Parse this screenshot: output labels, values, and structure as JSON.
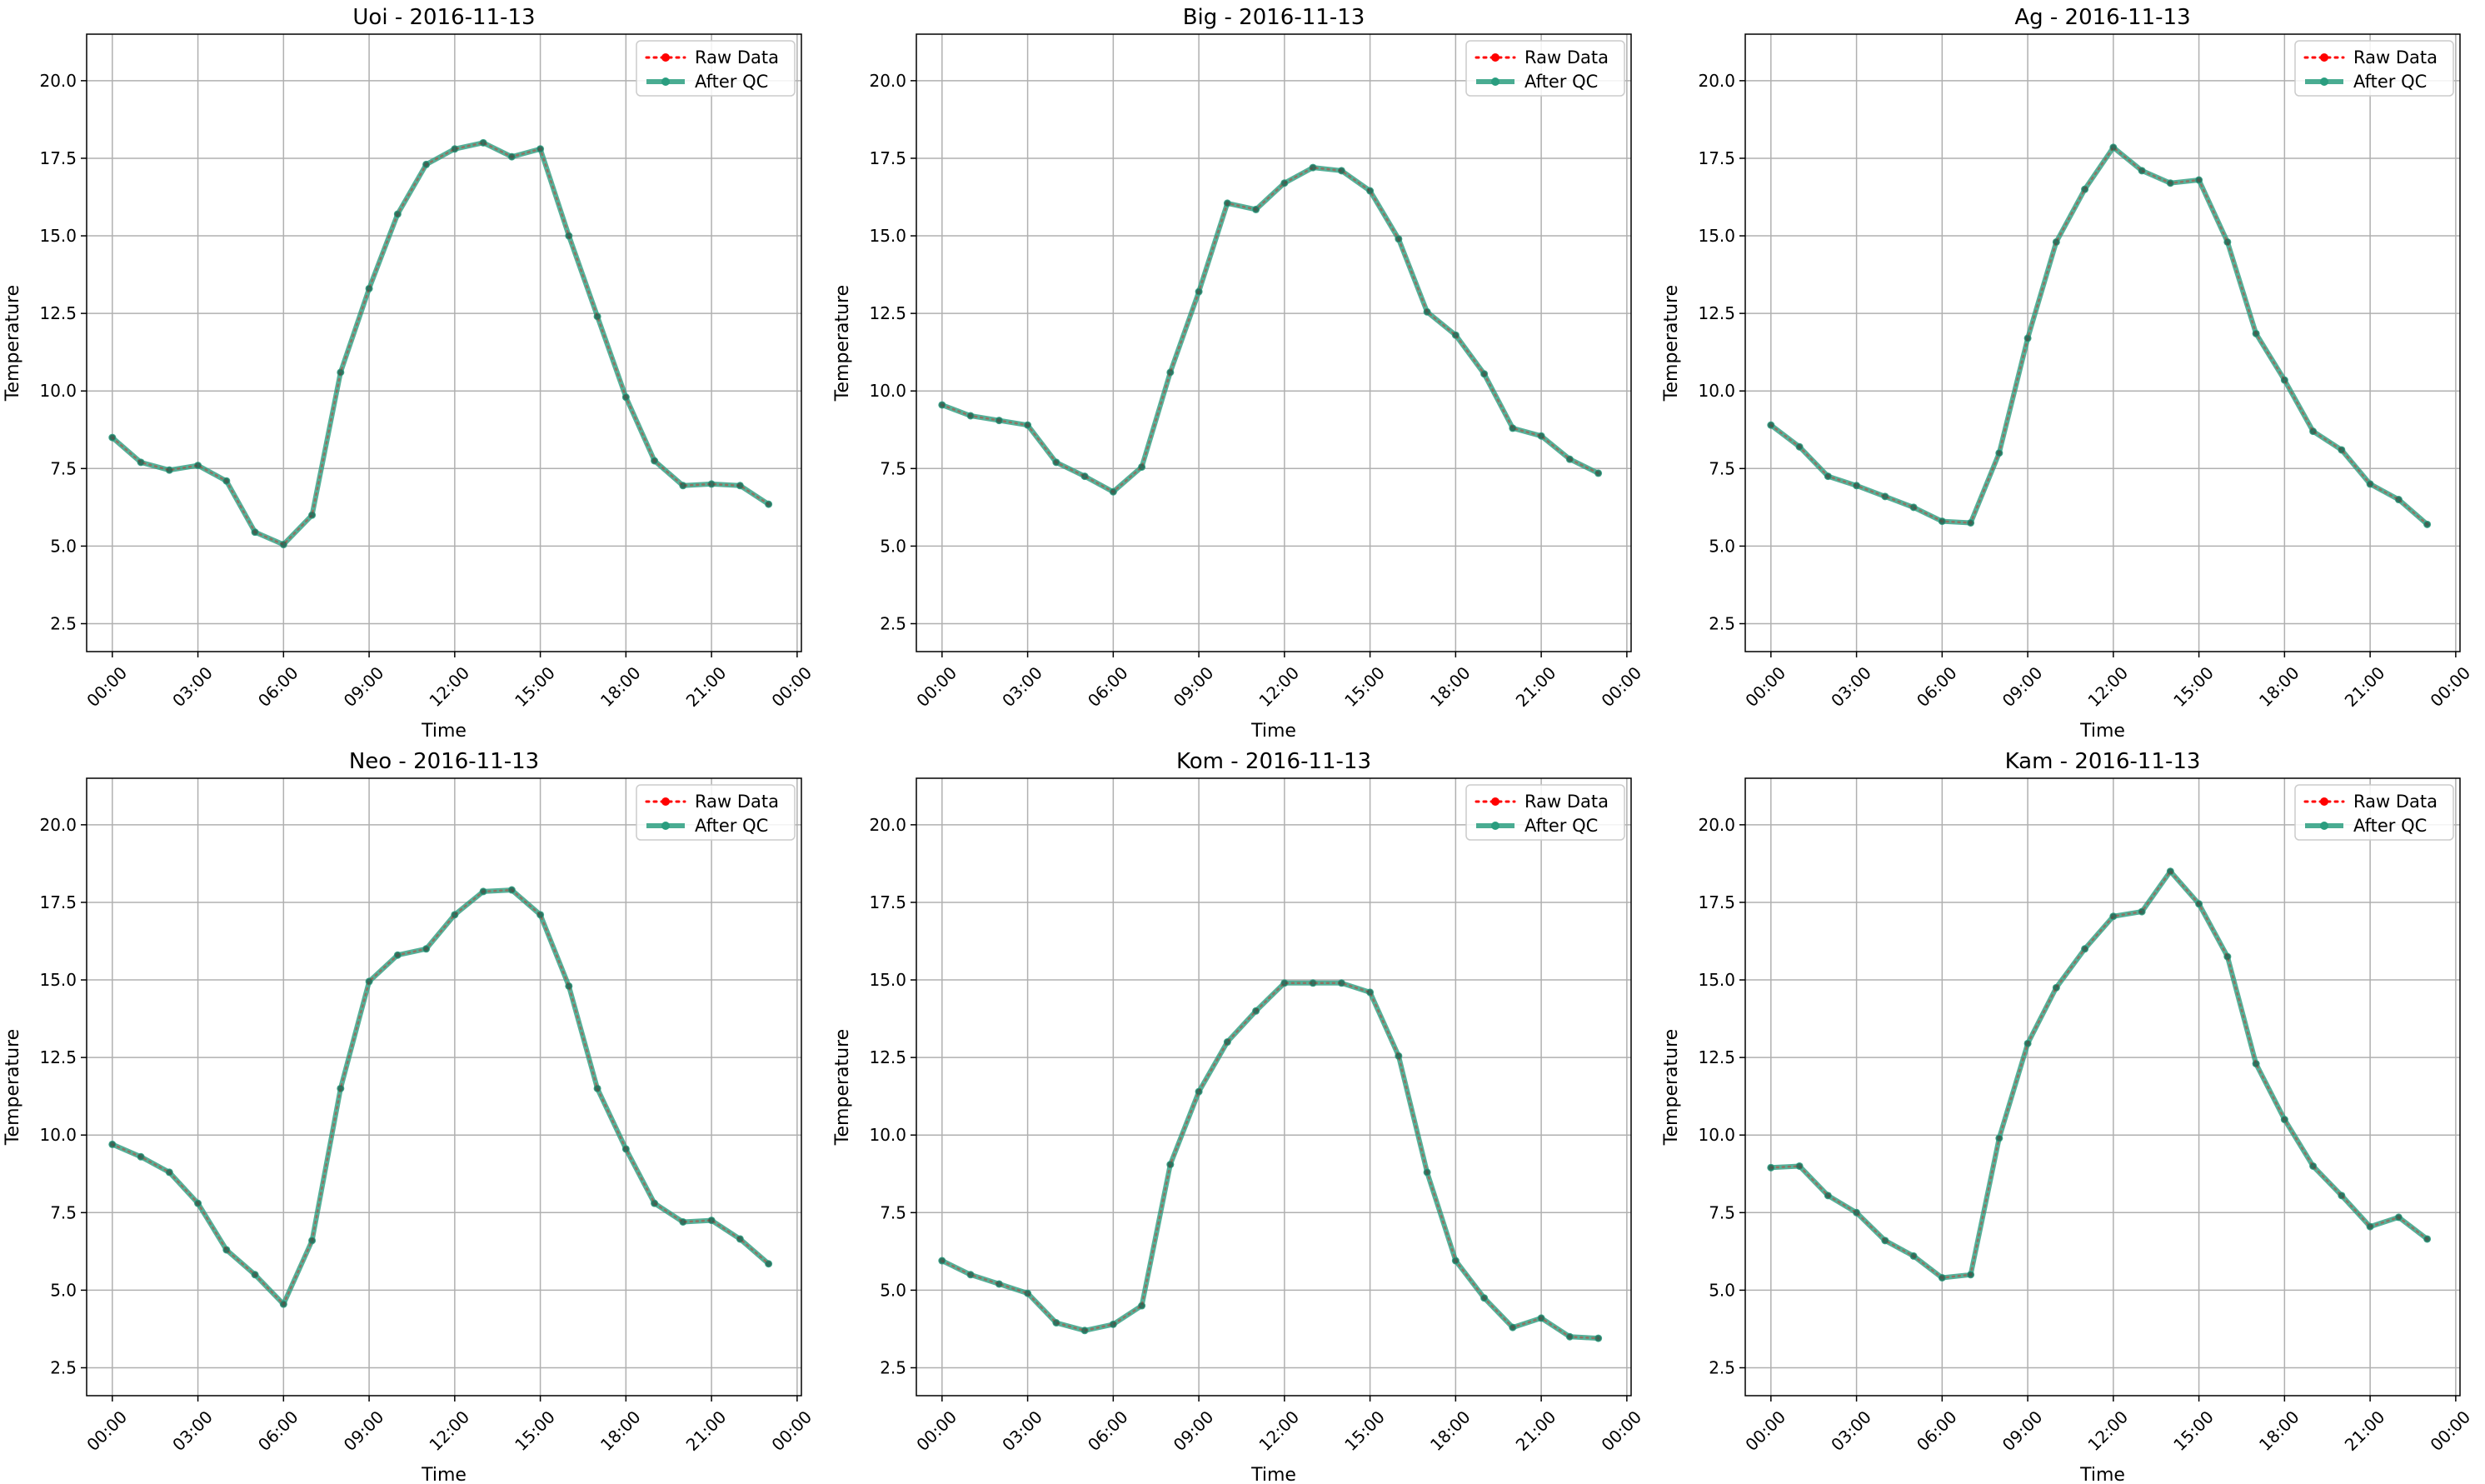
{
  "figure": {
    "xlabel": "Time",
    "ylabel": "Temperature",
    "ylim": [
      1.6,
      21.5
    ],
    "yticks": [
      "2.5",
      "5.0",
      "7.5",
      "10.0",
      "12.5",
      "15.0",
      "17.5",
      "20.0"
    ],
    "xtick_labels": [
      "00:00",
      "03:00",
      "06:00",
      "09:00",
      "12:00",
      "15:00",
      "18:00",
      "21:00",
      "00:00"
    ],
    "legend": {
      "position": "upper right",
      "raw_label": "Raw Data",
      "qc_label": "After QC"
    },
    "colors": {
      "raw": "#ff0000",
      "qc": "#2a9d7f",
      "grid": "#b0b0b0"
    }
  },
  "chart_data": [
    {
      "type": "line",
      "title": "Uoi - 2016-11-13",
      "xlabel": "Time",
      "ylabel": "Temperature",
      "x": [
        "00:00",
        "01:00",
        "02:00",
        "03:00",
        "04:00",
        "05:00",
        "06:00",
        "07:00",
        "08:00",
        "09:00",
        "10:00",
        "11:00",
        "12:00",
        "13:00",
        "14:00",
        "15:00",
        "16:00",
        "17:00",
        "18:00",
        "19:00",
        "20:00",
        "21:00",
        "22:00",
        "23:00"
      ],
      "series": [
        {
          "name": "Raw Data",
          "values": [
            8.5,
            7.7,
            7.45,
            7.6,
            7.1,
            5.45,
            5.05,
            6.0,
            10.6,
            13.3,
            15.7,
            17.3,
            17.8,
            18.0,
            17.55,
            17.8,
            15.0,
            12.4,
            9.8,
            7.75,
            6.95,
            7.0,
            6.95,
            6.35
          ]
        },
        {
          "name": "After QC",
          "values": [
            8.5,
            7.7,
            7.45,
            7.6,
            7.1,
            5.45,
            5.05,
            6.0,
            10.6,
            13.3,
            15.7,
            17.3,
            17.8,
            18.0,
            17.55,
            17.8,
            15.0,
            12.4,
            9.8,
            7.75,
            6.95,
            7.0,
            6.95,
            6.35
          ]
        }
      ]
    },
    {
      "type": "line",
      "title": "Big - 2016-11-13",
      "xlabel": "Time",
      "ylabel": "Temperature",
      "x": [
        "00:00",
        "01:00",
        "02:00",
        "03:00",
        "04:00",
        "05:00",
        "06:00",
        "07:00",
        "08:00",
        "09:00",
        "10:00",
        "11:00",
        "12:00",
        "13:00",
        "14:00",
        "15:00",
        "16:00",
        "17:00",
        "18:00",
        "19:00",
        "20:00",
        "21:00",
        "22:00",
        "23:00"
      ],
      "series": [
        {
          "name": "Raw Data",
          "values": [
            9.55,
            9.2,
            9.05,
            8.9,
            7.7,
            7.25,
            6.75,
            7.55,
            10.6,
            13.2,
            16.05,
            15.85,
            16.7,
            17.2,
            17.1,
            16.45,
            14.9,
            12.55,
            11.8,
            10.55,
            8.8,
            8.55,
            7.8,
            7.35
          ]
        },
        {
          "name": "After QC",
          "values": [
            9.55,
            9.2,
            9.05,
            8.9,
            7.7,
            7.25,
            6.75,
            7.55,
            10.6,
            13.2,
            16.05,
            15.85,
            16.7,
            17.2,
            17.1,
            16.45,
            14.9,
            12.55,
            11.8,
            10.55,
            8.8,
            8.55,
            7.8,
            7.35
          ]
        }
      ]
    },
    {
      "type": "line",
      "title": "Ag - 2016-11-13",
      "xlabel": "Time",
      "ylabel": "Temperature",
      "x": [
        "00:00",
        "01:00",
        "02:00",
        "03:00",
        "04:00",
        "05:00",
        "06:00",
        "07:00",
        "08:00",
        "09:00",
        "10:00",
        "11:00",
        "12:00",
        "13:00",
        "14:00",
        "15:00",
        "16:00",
        "17:00",
        "18:00",
        "19:00",
        "20:00",
        "21:00",
        "22:00",
        "23:00"
      ],
      "series": [
        {
          "name": "Raw Data",
          "values": [
            8.9,
            8.2,
            7.25,
            6.95,
            6.6,
            6.25,
            5.8,
            5.75,
            8.0,
            11.7,
            14.8,
            16.5,
            17.85,
            17.1,
            16.7,
            16.8,
            14.8,
            11.85,
            10.35,
            8.7,
            8.1,
            7.0,
            6.5,
            5.7
          ]
        },
        {
          "name": "After QC",
          "values": [
            8.9,
            8.2,
            7.25,
            6.95,
            6.6,
            6.25,
            5.8,
            5.75,
            8.0,
            11.7,
            14.8,
            16.5,
            17.85,
            17.1,
            16.7,
            16.8,
            14.8,
            11.85,
            10.35,
            8.7,
            8.1,
            7.0,
            6.5,
            5.7
          ]
        }
      ]
    },
    {
      "type": "line",
      "title": "Neo - 2016-11-13",
      "xlabel": "Time",
      "ylabel": "Temperature",
      "x": [
        "00:00",
        "01:00",
        "02:00",
        "03:00",
        "04:00",
        "05:00",
        "06:00",
        "07:00",
        "08:00",
        "09:00",
        "10:00",
        "11:00",
        "12:00",
        "13:00",
        "14:00",
        "15:00",
        "16:00",
        "17:00",
        "18:00",
        "19:00",
        "20:00",
        "21:00",
        "22:00",
        "23:00"
      ],
      "series": [
        {
          "name": "Raw Data",
          "values": [
            9.7,
            9.3,
            8.8,
            7.8,
            6.3,
            5.5,
            4.55,
            6.6,
            11.5,
            14.95,
            15.8,
            16.0,
            17.1,
            17.85,
            17.9,
            17.1,
            14.8,
            11.5,
            9.55,
            7.8,
            7.2,
            7.25,
            6.65,
            5.85
          ]
        },
        {
          "name": "After QC",
          "values": [
            9.7,
            9.3,
            8.8,
            7.8,
            6.3,
            5.5,
            4.55,
            6.6,
            11.5,
            14.95,
            15.8,
            16.0,
            17.1,
            17.85,
            17.9,
            17.1,
            14.8,
            11.5,
            9.55,
            7.8,
            7.2,
            7.25,
            6.65,
            5.85
          ]
        }
      ]
    },
    {
      "type": "line",
      "title": "Kom - 2016-11-13",
      "xlabel": "Time",
      "ylabel": "Temperature",
      "x": [
        "00:00",
        "01:00",
        "02:00",
        "03:00",
        "04:00",
        "05:00",
        "06:00",
        "07:00",
        "08:00",
        "09:00",
        "10:00",
        "11:00",
        "12:00",
        "13:00",
        "14:00",
        "15:00",
        "16:00",
        "17:00",
        "18:00",
        "19:00",
        "20:00",
        "21:00",
        "22:00",
        "23:00"
      ],
      "series": [
        {
          "name": "Raw Data",
          "values": [
            5.95,
            5.5,
            5.2,
            4.9,
            3.95,
            3.7,
            3.9,
            4.5,
            9.05,
            11.4,
            13.0,
            14.0,
            14.9,
            14.9,
            14.9,
            14.6,
            12.55,
            8.8,
            5.95,
            4.75,
            3.8,
            4.1,
            3.5,
            3.45
          ]
        },
        {
          "name": "After QC",
          "values": [
            5.95,
            5.5,
            5.2,
            4.9,
            3.95,
            3.7,
            3.9,
            4.5,
            9.05,
            11.4,
            13.0,
            14.0,
            14.9,
            14.9,
            14.9,
            14.6,
            12.55,
            8.8,
            5.95,
            4.75,
            3.8,
            4.1,
            3.5,
            3.45
          ]
        }
      ]
    },
    {
      "type": "line",
      "title": "Kam - 2016-11-13",
      "xlabel": "Time",
      "ylabel": "Temperature",
      "x": [
        "00:00",
        "01:00",
        "02:00",
        "03:00",
        "04:00",
        "05:00",
        "06:00",
        "07:00",
        "08:00",
        "09:00",
        "10:00",
        "11:00",
        "12:00",
        "13:00",
        "14:00",
        "15:00",
        "16:00",
        "17:00",
        "18:00",
        "19:00",
        "20:00",
        "21:00",
        "22:00",
        "23:00"
      ],
      "series": [
        {
          "name": "Raw Data",
          "values": [
            8.95,
            9.0,
            8.05,
            7.5,
            6.6,
            6.1,
            5.4,
            5.5,
            9.9,
            12.95,
            14.75,
            16.0,
            17.05,
            17.2,
            18.5,
            17.45,
            15.75,
            12.3,
            10.5,
            9.0,
            8.05,
            7.05,
            7.35,
            6.65
          ]
        },
        {
          "name": "After QC",
          "values": [
            8.95,
            9.0,
            8.05,
            7.5,
            6.6,
            6.1,
            5.4,
            5.5,
            9.9,
            12.95,
            14.75,
            16.0,
            17.05,
            17.2,
            18.5,
            17.45,
            15.75,
            12.3,
            10.5,
            9.0,
            8.05,
            7.05,
            7.35,
            6.65
          ]
        }
      ]
    }
  ]
}
